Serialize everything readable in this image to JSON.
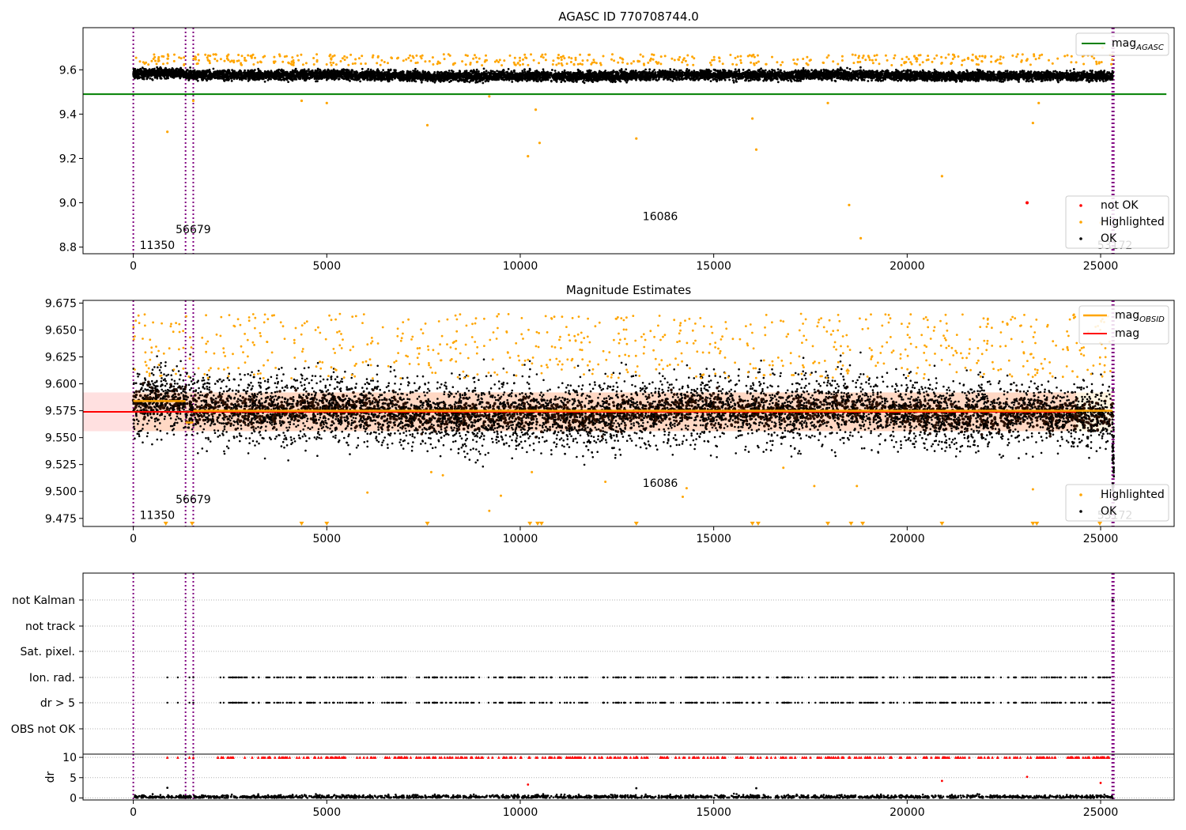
{
  "chart_data": [
    {
      "type": "scatter",
      "title": "AGASC ID 770708744.0",
      "xlim": [
        -1300,
        26900
      ],
      "ylim": [
        8.77,
        9.79
      ],
      "xticks": [
        0,
        5000,
        10000,
        15000,
        20000,
        25000
      ],
      "yticks": [
        8.8,
        9.0,
        9.2,
        9.4,
        9.6
      ],
      "ytick_labels": [
        "8.8",
        "9.0",
        "9.2",
        "9.4",
        "9.6"
      ],
      "hline": {
        "name": "mag",
        "sub": "AGASC",
        "value": 9.49,
        "color": "#008000",
        "x_end": 26700
      },
      "series": [
        {
          "name": "not OK",
          "color": "#ff0000",
          "points": [
            [
              23100,
              9.0
            ]
          ]
        },
        {
          "name": "Highlighted",
          "color": "#ffa500",
          "points": [
            [
              880,
              9.32
            ],
            [
              1550,
              9.46
            ],
            [
              4350,
              9.46
            ],
            [
              5000,
              9.45
            ],
            [
              7600,
              9.35
            ],
            [
              9200,
              9.48
            ],
            [
              10200,
              9.21
            ],
            [
              10400,
              9.42
            ],
            [
              10500,
              9.27
            ],
            [
              13000,
              9.29
            ],
            [
              16000,
              9.38
            ],
            [
              16100,
              9.24
            ],
            [
              17950,
              9.45
            ],
            [
              18500,
              8.99
            ],
            [
              18800,
              8.84
            ],
            [
              20900,
              9.12
            ],
            [
              23250,
              9.36
            ],
            [
              23400,
              9.45
            ],
            [
              25000,
              8.91
            ],
            [
              25050,
              9.7
            ]
          ]
        },
        {
          "name": "OK",
          "color": "#000000",
          "points": []
        }
      ],
      "obs_lines": [
        0,
        1350,
        1550,
        25300,
        25340
      ],
      "obs_labels": [
        {
          "text": "11350",
          "x": 0,
          "y": 8.81
        },
        {
          "text": "56679",
          "x": 930,
          "y": 8.88
        },
        {
          "text": "16086",
          "x": 13000,
          "y": 8.94
        },
        {
          "text": "53172",
          "x": 24750,
          "y": 8.81
        }
      ],
      "legend_main": [
        {
          "label": "mag",
          "sub": "AGASC"
        }
      ],
      "legend_points": [
        "not OK",
        "Highlighted",
        "OK"
      ]
    },
    {
      "type": "scatter",
      "title": "Magnitude Estimates",
      "xlim": [
        -1300,
        26900
      ],
      "ylim": [
        9.4675,
        9.6775
      ],
      "xticks": [
        0,
        5000,
        10000,
        15000,
        20000,
        25000
      ],
      "yticks": [
        9.475,
        9.5,
        9.525,
        9.55,
        9.575,
        9.6,
        9.625,
        9.65,
        9.675
      ],
      "ytick_labels": [
        "9.475",
        "9.500",
        "9.525",
        "9.550",
        "9.575",
        "9.600",
        "9.625",
        "9.650",
        "9.675"
      ],
      "mag": {
        "name": "mag",
        "value": 9.574,
        "band": [
          9.556,
          9.592
        ],
        "color": "#ff0000"
      },
      "mag_obsid": {
        "name": "mag",
        "sub": "OBSID",
        "color": "#ffa500",
        "segments": [
          [
            0,
            1350,
            9.584
          ],
          [
            1350,
            1550,
            9.564
          ],
          [
            1550,
            25300,
            9.575
          ]
        ]
      },
      "highlight_low": [
        840,
        1520,
        4350,
        5000,
        7600,
        10250,
        10450,
        10550,
        13000,
        16000,
        16150,
        17950,
        18550,
        18850,
        20900,
        23250,
        23350,
        24980
      ],
      "series": [
        {
          "name": "Highlighted",
          "color": "#ffa500"
        },
        {
          "name": "OK",
          "color": "#000000"
        }
      ],
      "obs_lines": [
        0,
        1350,
        1550,
        25300,
        25340
      ],
      "obs_labels": [
        {
          "text": "11350",
          "x": 0,
          "y": 9.478
        },
        {
          "text": "56679",
          "x": 930,
          "y": 9.493
        },
        {
          "text": "16086",
          "x": 13000,
          "y": 9.508
        },
        {
          "text": "53172",
          "x": 24750,
          "y": 9.478
        }
      ],
      "legend_main": [
        {
          "label": "mag",
          "sub": "OBSID"
        },
        {
          "label": "mag",
          "sub": ""
        }
      ],
      "legend_points": [
        "Highlighted",
        "OK"
      ]
    },
    {
      "type": "scatter",
      "xlim": [
        -1300,
        26900
      ],
      "xticks": [
        0,
        5000,
        10000,
        15000,
        20000,
        25000
      ],
      "flag_labels": [
        "not Kalman",
        "not track",
        "Sat. pixel.",
        "Ion. rad.",
        "dr > 5",
        "OBS not OK"
      ],
      "ion_rad_x": [
        880,
        1150,
        1450,
        1550
      ],
      "ion_rad_range": [
        2150,
        25300
      ],
      "dr": {
        "ylabel": "dr",
        "yticks": [
          0,
          5,
          10
        ],
        "ylim": [
          -0.5,
          10.8
        ],
        "cap": 10,
        "outliers": [
          [
            880,
            2.5
          ],
          [
            10200,
            3.3
          ],
          [
            13000,
            2.4
          ],
          [
            16100,
            2.4
          ],
          [
            20900,
            4.2
          ],
          [
            23100,
            5.2
          ],
          [
            25000,
            3.7
          ]
        ]
      },
      "obs_lines": [
        0,
        1350,
        1550,
        25300,
        25340
      ]
    }
  ]
}
